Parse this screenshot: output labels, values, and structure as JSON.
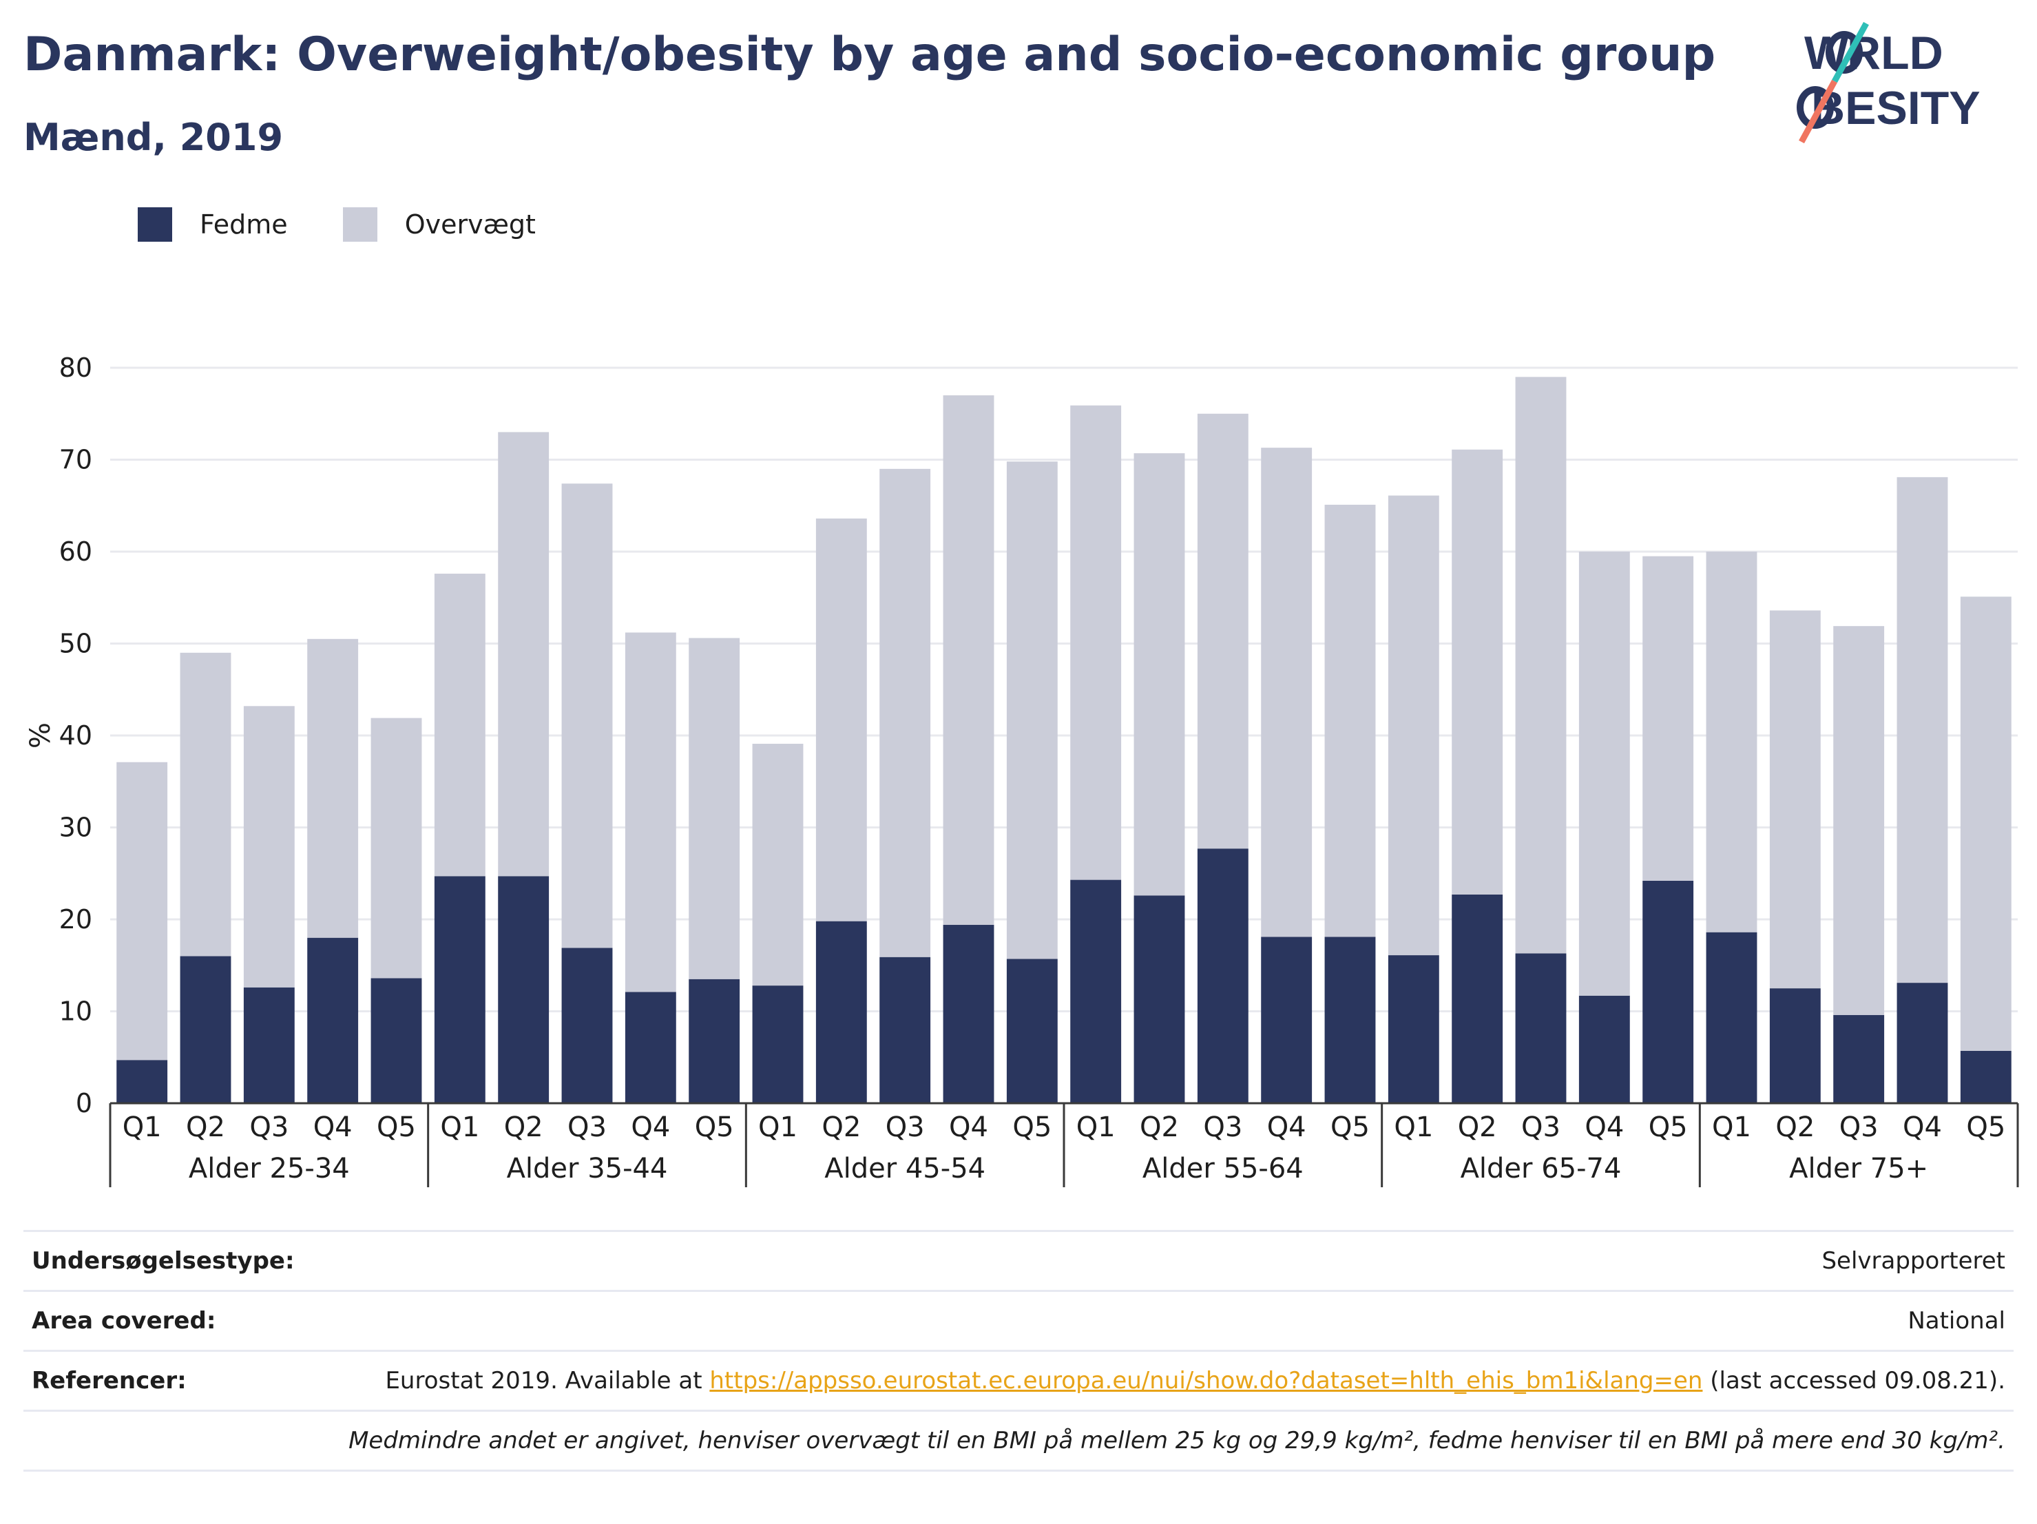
{
  "header": {
    "title": "Danmark: Overweight/obesity by age and socio-economic group",
    "subtitle": "Mænd, 2019"
  },
  "logo": {
    "line1": "WORLD",
    "line2": "OBESITY"
  },
  "legend": {
    "items": [
      {
        "label": "Fedme",
        "color": "#2a365e"
      },
      {
        "label": "Overvægt",
        "color": "#cbcdd9"
      }
    ]
  },
  "chart_data": {
    "type": "bar",
    "stacked": true,
    "ylabel": "%",
    "ylim": [
      0,
      80
    ],
    "yticks": [
      0,
      10,
      20,
      30,
      40,
      50,
      60,
      70,
      80
    ],
    "grid": true,
    "legend_position": "top-left",
    "groups": [
      "Alder 25-34",
      "Alder 35-44",
      "Alder 45-54",
      "Alder 55-64",
      "Alder 65-74",
      "Alder 75+"
    ],
    "subcategories": [
      "Q1",
      "Q2",
      "Q3",
      "Q4",
      "Q5"
    ],
    "series": [
      {
        "name": "Fedme",
        "color": "#2a365e",
        "values": [
          4.7,
          16.0,
          12.6,
          18.0,
          13.6,
          24.7,
          24.7,
          16.9,
          12.1,
          13.5,
          12.8,
          19.8,
          15.9,
          19.4,
          15.7,
          24.3,
          22.6,
          27.7,
          18.1,
          18.1,
          16.1,
          22.7,
          16.3,
          11.7,
          24.2,
          18.6,
          12.5,
          9.6,
          13.1,
          5.7
        ]
      },
      {
        "name": "Overvægt",
        "color": "#cbcdd9",
        "values": [
          32.4,
          33.0,
          30.6,
          32.5,
          28.3,
          32.9,
          48.3,
          50.5,
          39.1,
          37.1,
          26.3,
          43.8,
          53.1,
          57.6,
          54.1,
          51.6,
          48.1,
          47.3,
          53.2,
          47.0,
          50.0,
          48.4,
          62.7,
          48.3,
          35.3,
          41.4,
          41.1,
          42.3,
          55.0,
          49.4
        ]
      }
    ],
    "totals": [
      37.1,
      49.0,
      43.2,
      50.5,
      41.9,
      57.6,
      73.0,
      67.4,
      51.2,
      50.6,
      39.1,
      63.6,
      69.0,
      77.0,
      69.8,
      75.9,
      70.7,
      75.0,
      71.3,
      65.1,
      66.1,
      71.1,
      79.0,
      60.0,
      59.5,
      60.0,
      53.6,
      51.9,
      68.1,
      55.1
    ]
  },
  "info": {
    "survey_label": "Undersøgelsestype:",
    "survey_value": "Selvrapporteret",
    "area_label": "Area covered:",
    "area_value": "National",
    "ref_label": "Referencer:",
    "ref_prefix": "Eurostat 2019. Available at ",
    "ref_link": "https://appsso.eurostat.ec.europa.eu/nui/show.do?dataset=hlth_ehis_bm1i&lang=en",
    "ref_suffix": " (last accessed 09.08.21).",
    "note": "Medmindre andet er angivet, henviser overvægt til en BMI på mellem 25 kg og 29,9 kg/m², fedme henviser til en BMI på mere end 30 kg/m²."
  }
}
